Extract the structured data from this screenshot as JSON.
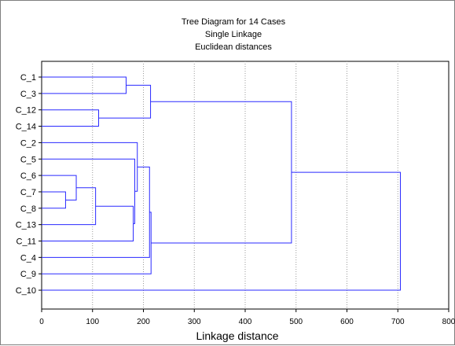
{
  "chart_data": {
    "type": "dendrogram",
    "title": "Tree Diagram for 14 Cases",
    "subtitle_lines": [
      "Single Linkage",
      "Euclidean distances"
    ],
    "xlabel": "Linkage distance",
    "xlim": [
      0,
      800
    ],
    "x_ticks": [
      0,
      100,
      200,
      300,
      400,
      500,
      600,
      700,
      800
    ],
    "grid": "vertical dotted",
    "line_color": "#2a2aff",
    "cases": [
      "C_1",
      "C_3",
      "C_12",
      "C_14",
      "C_2",
      "C_5",
      "C_6",
      "C_7",
      "C_8",
      "C_13",
      "C_11",
      "C_4",
      "C_9",
      "C_10"
    ],
    "merges": [
      {
        "id": "A",
        "left": "C_7",
        "right": "C_8",
        "height": 47
      },
      {
        "id": "B",
        "left": "C_6",
        "right": "A",
        "height": 68
      },
      {
        "id": "C",
        "left": "B",
        "right": "C_13",
        "height": 106
      },
      {
        "id": "D",
        "left": "C_12",
        "right": "C_14",
        "height": 112
      },
      {
        "id": "E",
        "left": "C_1",
        "right": "C_3",
        "height": 166
      },
      {
        "id": "F",
        "left": "C",
        "right": "C_11",
        "height": 180
      },
      {
        "id": "G",
        "left": "C_5",
        "right": "F",
        "height": 183
      },
      {
        "id": "H",
        "left": "C_2",
        "right": "G",
        "height": 188
      },
      {
        "id": "I",
        "left": "H",
        "right": "C_4",
        "height": 212
      },
      {
        "id": "J",
        "left": "E",
        "right": "D",
        "height": 214
      },
      {
        "id": "K",
        "left": "I",
        "right": "C_9",
        "height": 215
      },
      {
        "id": "L",
        "left": "J",
        "right": "K",
        "height": 491
      },
      {
        "id": "M",
        "left": "L",
        "right": "C_10",
        "height": 705
      }
    ]
  }
}
